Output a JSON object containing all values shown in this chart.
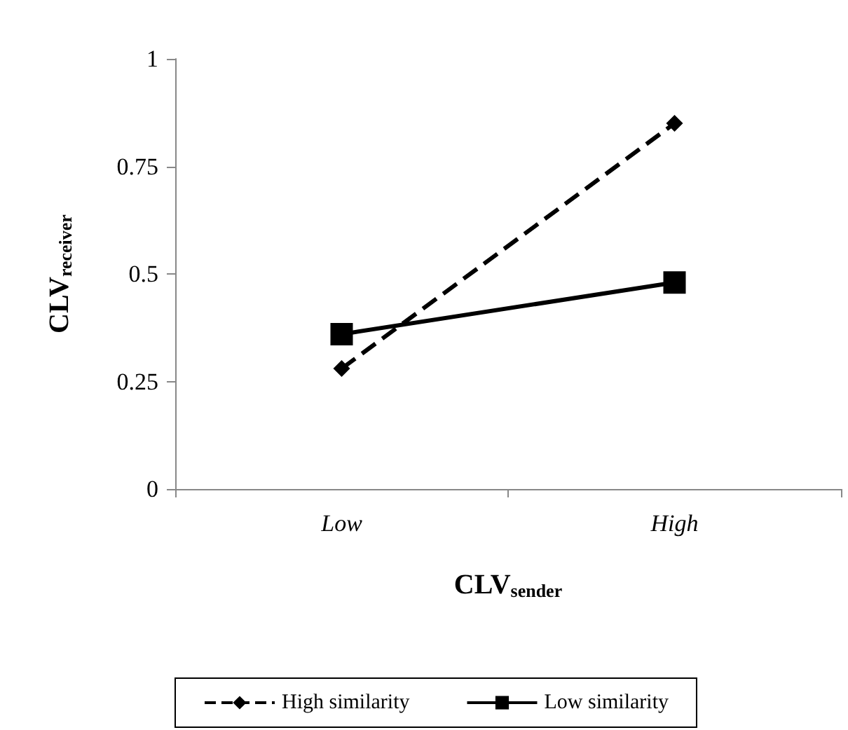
{
  "chart_data": {
    "type": "line",
    "xlabel": "CLV$_{sender}$",
    "ylabel": "CLV$_{receiver}$",
    "categories": [
      "Low",
      "High"
    ],
    "series": [
      {
        "name": "High similarity",
        "color": "#000000",
        "values": [
          0.28,
          0.85
        ],
        "marker": "diamond",
        "line_style": "dashed"
      },
      {
        "name": "Low similarity",
        "color": "#000000",
        "values": [
          0.36,
          0.48
        ],
        "marker": "square",
        "line_style": "solid"
      }
    ],
    "ylim": [
      0,
      1
    ],
    "yticks": [
      0,
      0.25,
      0.5,
      0.75,
      1
    ],
    "grid": false,
    "legend": "bottom"
  }
}
